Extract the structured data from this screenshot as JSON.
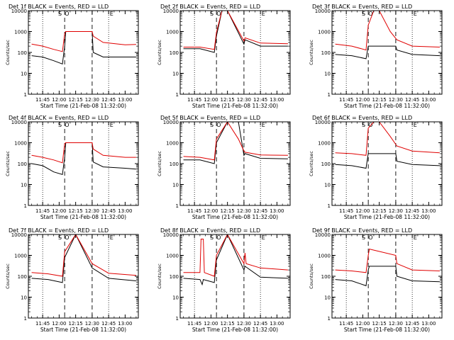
{
  "figure": {
    "xlabel": "Start Time (21-Feb-08 11:32:00)",
    "ylabel": "Counts/sec"
  },
  "markers": [
    "S",
    "O",
    "E"
  ],
  "colors": {
    "events": "#000000",
    "lld": "#e00000",
    "axis": "#000000"
  },
  "chart_data": [
    {
      "type": "line",
      "title": "Det 1f BLACK = Events, RED = LLD",
      "xlabel": "Start Time (21-Feb-08 11:32:00)",
      "ylabel": "Counts/sec",
      "yscale": "log",
      "ylim": [
        1,
        10000
      ],
      "xticks": [
        "11:45",
        "12:00",
        "12:15",
        "12:30",
        "12:45",
        "13:00"
      ],
      "yticks": [
        "1",
        "10",
        "100",
        "1000",
        "10000"
      ],
      "dotted_lines": [
        "11:45",
        "12:45"
      ],
      "dashed_lines": [
        "12:05",
        "12:30"
      ],
      "series": [
        {
          "name": "Events",
          "x": [
            "11:35",
            "11:45",
            "11:55",
            "12:03",
            "12:05",
            "12:06",
            "12:30",
            "12:31",
            "12:40",
            "13:00",
            "13:10"
          ],
          "y": [
            70,
            60,
            40,
            28,
            200,
            1000,
            1000,
            100,
            60,
            60,
            60
          ]
        },
        {
          "name": "LLD",
          "x": [
            "11:35",
            "11:45",
            "11:55",
            "12:03",
            "12:05",
            "12:06",
            "12:30",
            "12:31",
            "12:40",
            "13:00",
            "13:10"
          ],
          "y": [
            250,
            200,
            140,
            110,
            800,
            1000,
            1000,
            600,
            300,
            230,
            240
          ]
        }
      ]
    },
    {
      "type": "line",
      "title": "Det 2f BLACK = Events, RED = LLD",
      "xlabel": "Start Time (21-Feb-08 11:32:00)",
      "ylabel": "Counts/sec",
      "yscale": "log",
      "ylim": [
        1,
        10000
      ],
      "xticks": [
        "11:45",
        "12:00",
        "12:15",
        "12:30",
        "12:45",
        "13:00"
      ],
      "yticks": [
        "1",
        "10",
        "100",
        "1000",
        "10000"
      ],
      "dotted_lines": [
        "11:45",
        "12:45"
      ],
      "dashed_lines": [
        "12:05",
        "12:30"
      ],
      "series": [
        {
          "name": "Events",
          "x": [
            "11:35",
            "11:50",
            "12:03",
            "12:05",
            "12:10",
            "12:15",
            "12:30",
            "12:31",
            "12:45",
            "13:10"
          ],
          "y": [
            150,
            150,
            100,
            600,
            10000,
            10000,
            250,
            400,
            200,
            200
          ]
        },
        {
          "name": "LLD",
          "x": [
            "11:35",
            "11:50",
            "12:03",
            "12:05",
            "12:10",
            "12:15",
            "12:30",
            "12:31",
            "12:45",
            "13:10"
          ],
          "y": [
            180,
            180,
            140,
            900,
            10000,
            10000,
            350,
            500,
            280,
            260
          ]
        }
      ]
    },
    {
      "type": "line",
      "title": "Det 3f BLACK = Events, RED = LLD",
      "xlabel": "Start Time (21-Feb-08 11:32:00)",
      "ylabel": "Counts/sec",
      "yscale": "log",
      "ylim": [
        1,
        10000
      ],
      "xticks": [
        "11:45",
        "12:00",
        "12:15",
        "12:30",
        "12:45",
        "13:00"
      ],
      "yticks": [
        "1",
        "10",
        "100",
        "1000",
        "10000"
      ],
      "dotted_lines": [
        "11:45",
        "12:45"
      ],
      "dashed_lines": [
        "12:05",
        "12:30"
      ],
      "series": [
        {
          "name": "Events",
          "x": [
            "11:35",
            "11:50",
            "12:03",
            "12:05",
            "12:30",
            "12:31",
            "12:45",
            "13:10"
          ],
          "y": [
            80,
            70,
            50,
            200,
            200,
            130,
            80,
            70
          ]
        },
        {
          "name": "LLD",
          "x": [
            "11:35",
            "11:50",
            "12:03",
            "12:05",
            "12:10",
            "12:15",
            "12:25",
            "12:31",
            "12:45",
            "13:10"
          ],
          "y": [
            250,
            200,
            130,
            2000,
            10000,
            10000,
            1000,
            400,
            200,
            180
          ]
        }
      ]
    },
    {
      "type": "line",
      "title": "Det 4f BLACK = Events, RED = LLD",
      "xlabel": "Start Time (21-Feb-08 11:32:00)",
      "ylabel": "Counts/sec",
      "yscale": "log",
      "ylim": [
        1,
        10000
      ],
      "xticks": [
        "11:45",
        "12:00",
        "12:15",
        "12:30",
        "12:45",
        "13:00"
      ],
      "yticks": [
        "1",
        "10",
        "100",
        "1000",
        "10000"
      ],
      "dotted_lines": [
        "11:45",
        "12:45"
      ],
      "dashed_lines": [
        "12:05",
        "12:30"
      ],
      "series": [
        {
          "name": "Events",
          "x": [
            "11:35",
            "11:45",
            "11:55",
            "12:03",
            "12:05",
            "12:06",
            "12:30",
            "12:31",
            "12:40",
            "13:00",
            "13:10"
          ],
          "y": [
            100,
            80,
            40,
            30,
            200,
            1000,
            1000,
            120,
            70,
            60,
            55
          ]
        },
        {
          "name": "LLD",
          "x": [
            "11:35",
            "11:45",
            "11:55",
            "12:03",
            "12:05",
            "12:06",
            "12:30",
            "12:31",
            "12:40",
            "13:00",
            "13:10"
          ],
          "y": [
            250,
            200,
            150,
            110,
            900,
            1000,
            1000,
            500,
            250,
            200,
            200
          ]
        }
      ]
    },
    {
      "type": "line",
      "title": "Det 5f BLACK = Events, RED = LLD",
      "xlabel": "Start Time (21-Feb-08 11:32:00)",
      "ylabel": "Counts/sec",
      "yscale": "log",
      "ylim": [
        1,
        10000
      ],
      "xticks": [
        "11:45",
        "12:00",
        "12:15",
        "12:30",
        "12:45",
        "13:00"
      ],
      "yticks": [
        "1",
        "10",
        "100",
        "1000",
        "10000"
      ],
      "dotted_lines": [
        "11:45",
        "12:45"
      ],
      "dashed_lines": [
        "12:05",
        "12:30"
      ],
      "series": [
        {
          "name": "Events",
          "x": [
            "11:35",
            "11:50",
            "12:03",
            "12:05",
            "12:15",
            "12:25",
            "12:30",
            "12:31",
            "12:45",
            "13:10"
          ],
          "y": [
            150,
            150,
            100,
            1000,
            10000,
            10000,
            250,
            300,
            180,
            170
          ]
        },
        {
          "name": "LLD",
          "x": [
            "11:35",
            "11:50",
            "12:03",
            "12:05",
            "12:15",
            "12:25",
            "12:30",
            "12:31",
            "12:45",
            "13:10"
          ],
          "y": [
            220,
            200,
            150,
            1500,
            10000,
            1500,
            400,
            350,
            260,
            250
          ]
        }
      ]
    },
    {
      "type": "line",
      "title": "Det 6f BLACK = Events, RED = LLD",
      "xlabel": "Start Time (21-Feb-08 11:32:00)",
      "ylabel": "Counts/sec",
      "yscale": "log",
      "ylim": [
        1,
        10000
      ],
      "xticks": [
        "11:45",
        "12:00",
        "12:15",
        "12:30",
        "12:45",
        "13:00"
      ],
      "yticks": [
        "1",
        "10",
        "100",
        "1000",
        "10000"
      ],
      "dotted_lines": [
        "11:45",
        "12:45"
      ],
      "dashed_lines": [
        "12:05",
        "12:30"
      ],
      "series": [
        {
          "name": "Events",
          "x": [
            "11:35",
            "11:50",
            "12:03",
            "12:05",
            "12:30",
            "12:31",
            "12:45",
            "13:10"
          ],
          "y": [
            90,
            80,
            60,
            300,
            300,
            130,
            90,
            80
          ]
        },
        {
          "name": "LLD",
          "x": [
            "11:35",
            "11:50",
            "12:03",
            "12:05",
            "12:10",
            "12:15",
            "12:25",
            "12:31",
            "12:45",
            "13:10"
          ],
          "y": [
            330,
            300,
            250,
            5000,
            10000,
            10000,
            2000,
            700,
            400,
            330
          ]
        }
      ]
    },
    {
      "type": "line",
      "title": "Det 7f BLACK = Events, RED = LLD",
      "xlabel": "Start Time (21-Feb-08 11:32:00)",
      "ylabel": "Counts/sec",
      "yscale": "log",
      "ylim": [
        1,
        10000
      ],
      "xticks": [
        "11:45",
        "12:00",
        "12:15",
        "12:30",
        "12:45",
        "13:00"
      ],
      "yticks": [
        "1",
        "10",
        "100",
        "1000",
        "10000"
      ],
      "dotted_lines": [
        "11:45",
        "12:45"
      ],
      "dashed_lines": [
        "12:05",
        "12:30"
      ],
      "series": [
        {
          "name": "Events",
          "x": [
            "11:35",
            "11:50",
            "12:03",
            "12:05",
            "12:15",
            "12:30",
            "12:45",
            "13:10"
          ],
          "y": [
            80,
            70,
            50,
            800,
            10000,
            250,
            80,
            60
          ]
        },
        {
          "name": "LLD",
          "x": [
            "11:35",
            "11:50",
            "12:03",
            "12:05",
            "12:15",
            "12:30",
            "12:45",
            "13:10"
          ],
          "y": [
            150,
            130,
            100,
            1500,
            10000,
            400,
            140,
            110
          ]
        }
      ]
    },
    {
      "type": "line",
      "title": "Det 8f BLACK = Events, RED = LLD",
      "xlabel": "Start Time (21-Feb-08 11:32:00)",
      "ylabel": "Counts/sec",
      "yscale": "log",
      "ylim": [
        1,
        10000
      ],
      "xticks": [
        "11:45",
        "12:00",
        "12:15",
        "12:30",
        "12:45",
        "13:00"
      ],
      "yticks": [
        "1",
        "10",
        "100",
        "1000",
        "10000"
      ],
      "dotted_lines": [
        "11:45",
        "12:45"
      ],
      "dashed_lines": [
        "12:05",
        "12:30"
      ],
      "series": [
        {
          "name": "Events",
          "x": [
            "11:35",
            "11:50",
            "11:52",
            "11:53",
            "12:03",
            "12:05",
            "12:15",
            "12:30",
            "12:31",
            "12:45",
            "13:10"
          ],
          "y": [
            80,
            70,
            40,
            70,
            50,
            600,
            10000,
            200,
            300,
            90,
            80
          ]
        },
        {
          "name": "LLD",
          "x": [
            "11:35",
            "11:50",
            "11:51",
            "11:53",
            "11:54",
            "12:03",
            "12:05",
            "12:15",
            "12:30",
            "12:31",
            "12:32",
            "12:45",
            "13:10"
          ],
          "y": [
            150,
            150,
            6000,
            6000,
            150,
            100,
            1000,
            10000,
            400,
            1300,
            400,
            250,
            200
          ]
        }
      ]
    },
    {
      "type": "line",
      "title": "Det 9f BLACK = Events, RED = LLD",
      "xlabel": "Start Time (21-Feb-08 11:32:00)",
      "ylabel": "Counts/sec",
      "yscale": "log",
      "ylim": [
        1,
        10000
      ],
      "xticks": [
        "11:45",
        "12:00",
        "12:15",
        "12:30",
        "12:45",
        "13:00"
      ],
      "yticks": [
        "1",
        "10",
        "100",
        "1000",
        "10000"
      ],
      "dotted_lines": [
        "11:45",
        "12:45"
      ],
      "dashed_lines": [
        "12:05",
        "12:30"
      ],
      "series": [
        {
          "name": "Events",
          "x": [
            "11:35",
            "11:50",
            "12:03",
            "12:05",
            "12:06",
            "12:30",
            "12:31",
            "12:45",
            "13:10"
          ],
          "y": [
            70,
            60,
            35,
            200,
            300,
            300,
            100,
            60,
            55
          ]
        },
        {
          "name": "LLD",
          "x": [
            "11:35",
            "11:50",
            "12:03",
            "12:05",
            "12:06",
            "12:30",
            "12:31",
            "12:45",
            "13:10"
          ],
          "y": [
            200,
            180,
            150,
            1000,
            2000,
            1000,
            400,
            200,
            180
          ]
        }
      ]
    }
  ]
}
